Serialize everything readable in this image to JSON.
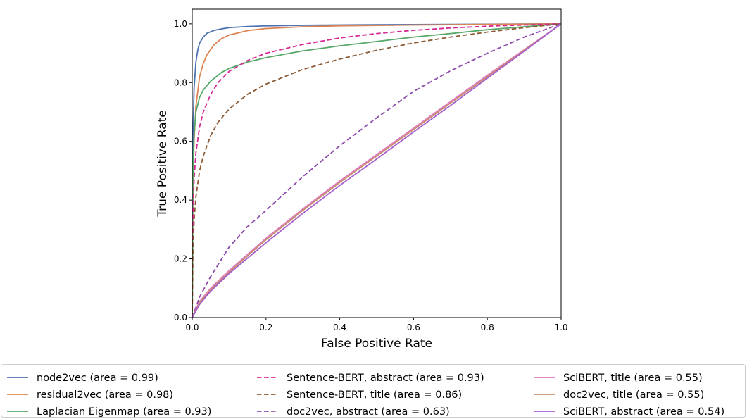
{
  "chart_data": {
    "type": "line",
    "xlabel": "False Positive Rate",
    "ylabel": "True Positive Rate",
    "xlim": [
      0.0,
      1.0
    ],
    "ylim": [
      0.0,
      1.05
    ],
    "xticks": [
      "0.0",
      "0.2",
      "0.4",
      "0.6",
      "0.8",
      "1.0"
    ],
    "yticks": [
      "0.0",
      "0.2",
      "0.4",
      "0.6",
      "0.8",
      "1.0"
    ],
    "grid": false,
    "legend_position": "bottom",
    "series": [
      {
        "name": "node2vec (area = 0.99)",
        "color": "#4c72b0",
        "dash": "solid",
        "x": [
          0,
          0.002,
          0.005,
          0.01,
          0.015,
          0.02,
          0.03,
          0.04,
          0.06,
          0.08,
          0.1,
          0.15,
          0.2,
          0.3,
          0.5,
          0.7,
          1.0
        ],
        "y": [
          0,
          0.62,
          0.78,
          0.87,
          0.91,
          0.935,
          0.955,
          0.968,
          0.978,
          0.983,
          0.987,
          0.991,
          0.993,
          0.995,
          0.997,
          0.998,
          1.0
        ]
      },
      {
        "name": "residual2vec (area = 0.98)",
        "color": "#dd8452",
        "dash": "solid",
        "x": [
          0,
          0.002,
          0.005,
          0.01,
          0.02,
          0.03,
          0.04,
          0.06,
          0.08,
          0.1,
          0.15,
          0.2,
          0.3,
          0.4,
          0.6,
          0.8,
          1.0
        ],
        "y": [
          0,
          0.45,
          0.6,
          0.72,
          0.82,
          0.865,
          0.895,
          0.93,
          0.95,
          0.962,
          0.977,
          0.984,
          0.99,
          0.993,
          0.996,
          0.998,
          1.0
        ]
      },
      {
        "name": "Laplacian Eigenmap (area = 0.93)",
        "color": "#55a868",
        "dash": "solid",
        "x": [
          0,
          0.002,
          0.005,
          0.01,
          0.02,
          0.03,
          0.05,
          0.08,
          0.1,
          0.15,
          0.2,
          0.3,
          0.4,
          0.5,
          0.6,
          0.7,
          0.8,
          0.9,
          1.0
        ],
        "y": [
          0,
          0.5,
          0.62,
          0.7,
          0.75,
          0.775,
          0.805,
          0.835,
          0.848,
          0.87,
          0.885,
          0.908,
          0.925,
          0.94,
          0.955,
          0.967,
          0.98,
          0.99,
          1.0
        ]
      },
      {
        "name": "Sentence-BERT, abstract (area = 0.93)",
        "color": "#d62796",
        "dash": "dashed",
        "x": [
          0,
          0.002,
          0.005,
          0.01,
          0.02,
          0.03,
          0.05,
          0.07,
          0.1,
          0.15,
          0.2,
          0.3,
          0.4,
          0.5,
          0.6,
          0.7,
          0.8,
          0.9,
          1.0
        ],
        "y": [
          0,
          0.35,
          0.47,
          0.56,
          0.65,
          0.7,
          0.76,
          0.8,
          0.838,
          0.875,
          0.9,
          0.93,
          0.952,
          0.967,
          0.978,
          0.986,
          0.992,
          0.996,
          1.0
        ]
      },
      {
        "name": "Sentence-BERT, title (area = 0.86)",
        "color": "#8c5a34",
        "dash": "dashed",
        "x": [
          0,
          0.002,
          0.005,
          0.01,
          0.02,
          0.03,
          0.05,
          0.07,
          0.1,
          0.15,
          0.2,
          0.3,
          0.4,
          0.5,
          0.6,
          0.7,
          0.8,
          0.9,
          1.0
        ],
        "y": [
          0,
          0.22,
          0.33,
          0.41,
          0.5,
          0.55,
          0.62,
          0.665,
          0.71,
          0.76,
          0.795,
          0.845,
          0.88,
          0.91,
          0.935,
          0.955,
          0.972,
          0.987,
          1.0
        ]
      },
      {
        "name": "doc2vec, abstract (area = 0.63)",
        "color": "#8e4aab",
        "dash": "dashed",
        "x": [
          0,
          0.02,
          0.05,
          0.1,
          0.15,
          0.2,
          0.3,
          0.4,
          0.5,
          0.6,
          0.7,
          0.8,
          0.9,
          1.0
        ],
        "y": [
          0,
          0.07,
          0.14,
          0.24,
          0.31,
          0.365,
          0.48,
          0.585,
          0.68,
          0.77,
          0.84,
          0.9,
          0.955,
          1.0
        ]
      },
      {
        "name": "SciBERT, title (area = 0.55)",
        "color": "#e377c2",
        "dash": "solid",
        "x": [
          0,
          0.02,
          0.05,
          0.1,
          0.2,
          0.3,
          0.4,
          0.5,
          0.6,
          0.7,
          0.8,
          0.9,
          1.0
        ],
        "y": [
          0,
          0.055,
          0.1,
          0.16,
          0.27,
          0.37,
          0.465,
          0.555,
          0.645,
          0.735,
          0.825,
          0.912,
          1.0
        ]
      },
      {
        "name": "doc2vec, title (area = 0.55)",
        "color": "#c4916a",
        "dash": "solid",
        "x": [
          0,
          0.02,
          0.05,
          0.1,
          0.2,
          0.3,
          0.4,
          0.5,
          0.6,
          0.7,
          0.8,
          0.9,
          1.0
        ],
        "y": [
          0,
          0.05,
          0.095,
          0.155,
          0.265,
          0.365,
          0.46,
          0.55,
          0.64,
          0.73,
          0.82,
          0.91,
          1.0
        ]
      },
      {
        "name": "SciBERT, abstract (area = 0.54)",
        "color": "#a65fcf",
        "dash": "solid",
        "x": [
          0,
          0.02,
          0.05,
          0.1,
          0.2,
          0.3,
          0.4,
          0.5,
          0.6,
          0.7,
          0.8,
          0.9,
          1.0
        ],
        "y": [
          0,
          0.045,
          0.09,
          0.15,
          0.255,
          0.355,
          0.45,
          0.54,
          0.632,
          0.722,
          0.815,
          0.907,
          1.0
        ]
      }
    ]
  }
}
